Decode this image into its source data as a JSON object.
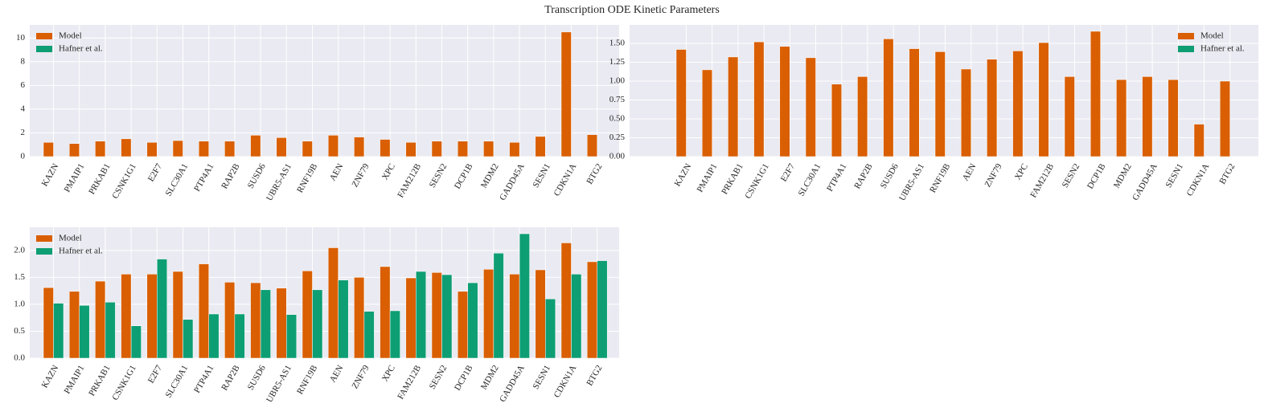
{
  "title": "Transcription ODE Kinetic Parameters",
  "chart_data": [
    {
      "type": "bar",
      "categories": [
        "KAZN",
        "PMAIP1",
        "PRKAB1",
        "CSNK1G1",
        "E2F7",
        "SLC30A1",
        "PTP4A1",
        "RAP2B",
        "SUSD6",
        "UBR5-AS1",
        "RNF19B",
        "AEN",
        "ZNF79",
        "XPC",
        "FAM212B",
        "SESN2",
        "DCP1B",
        "MDM2",
        "GADD45A",
        "SESN1",
        "CDKN1A",
        "BTG2"
      ],
      "series": [
        {
          "name": "Model",
          "color": "#d95f02",
          "values": [
            1.2,
            1.1,
            1.3,
            1.5,
            1.2,
            1.35,
            1.3,
            1.3,
            1.8,
            1.6,
            1.3,
            1.8,
            1.65,
            1.45,
            1.2,
            1.3,
            1.3,
            1.3,
            1.2,
            1.7,
            10.5,
            1.85
          ]
        },
        {
          "name": "Hafner et al.",
          "color": "#0e9e74",
          "values": [
            null,
            null,
            null,
            null,
            null,
            null,
            null,
            null,
            null,
            null,
            null,
            null,
            null,
            null,
            null,
            null,
            null,
            null,
            null,
            null,
            null,
            null
          ]
        }
      ],
      "ylim": [
        0,
        11.1
      ],
      "yticks": [
        0,
        2,
        4,
        6,
        8,
        10
      ],
      "grid": true,
      "legend": "upper left"
    },
    {
      "type": "bar",
      "categories": [
        "KAZN",
        "PMAIP1",
        "PRKAB1",
        "CSNK1G1",
        "E2F7",
        "SLC30A1",
        "PTP4A1",
        "RAP2B",
        "SUSD6",
        "UBR5-AS1",
        "RNF19B",
        "AEN",
        "ZNF79",
        "XPC",
        "FAM212B",
        "SESN2",
        "DCP1B",
        "MDM2",
        "GADD45A",
        "SESN1",
        "CDKN1A",
        "BTG2"
      ],
      "series": [
        {
          "name": "Model",
          "color": "#d95f02",
          "values": [
            1.42,
            1.15,
            1.32,
            1.52,
            1.46,
            1.31,
            0.96,
            1.06,
            1.56,
            1.43,
            1.39,
            1.16,
            1.29,
            1.4,
            1.51,
            1.06,
            1.66,
            1.02,
            1.06,
            1.02,
            0.43,
            1.0
          ]
        },
        {
          "name": "Hafner et al.",
          "color": "#0e9e74",
          "values": [
            null,
            null,
            null,
            null,
            null,
            null,
            null,
            null,
            null,
            null,
            null,
            null,
            null,
            null,
            null,
            null,
            null,
            null,
            null,
            null,
            null,
            null
          ]
        }
      ],
      "ylim": [
        0,
        1.745
      ],
      "yticks": [
        {
          "value": 0,
          "label": "0.00"
        },
        {
          "value": 0.25,
          "label": "0.25"
        },
        {
          "value": 0.5,
          "label": "0.50"
        },
        {
          "value": 0.75,
          "label": "0.75"
        },
        {
          "value": 1,
          "label": "1.00"
        },
        {
          "value": 1.25,
          "label": "1.25"
        },
        {
          "value": 1.5,
          "label": "1.50"
        }
      ],
      "grid": true,
      "legend": "upper right"
    },
    {
      "type": "bar",
      "categories": [
        "KAZN",
        "PMAIP1",
        "PRKAB1",
        "CSNK1G1",
        "E2F7",
        "SLC30A1",
        "PTP4A1",
        "RAP2B",
        "SUSD6",
        "UBR5-AS1",
        "RNF19B",
        "AEN",
        "ZNF79",
        "XPC",
        "FAM212B",
        "SESN2",
        "DCP1B",
        "MDM2",
        "GADD45A",
        "SESN1",
        "CDKN1A",
        "BTG2"
      ],
      "series": [
        {
          "name": "Model",
          "color": "#d95f02",
          "values": [
            1.31,
            1.24,
            1.43,
            1.56,
            1.56,
            1.61,
            1.75,
            1.41,
            1.4,
            1.3,
            1.62,
            2.05,
            1.5,
            1.7,
            1.49,
            1.59,
            1.24,
            1.65,
            1.56,
            1.64,
            2.14,
            1.79
          ]
        },
        {
          "name": "Hafner et al.",
          "color": "#0e9e74",
          "values": [
            1.02,
            0.98,
            1.04,
            0.6,
            1.84,
            0.72,
            0.82,
            0.82,
            1.27,
            0.81,
            1.27,
            1.45,
            0.87,
            0.88,
            1.61,
            1.55,
            1.4,
            1.95,
            2.31,
            1.1,
            1.56,
            1.81
          ]
        }
      ],
      "ylim": [
        0,
        2.43
      ],
      "yticks": [
        {
          "value": 0,
          "label": "0.0"
        },
        {
          "value": 0.5,
          "label": "0.5"
        },
        {
          "value": 1,
          "label": "1.0"
        },
        {
          "value": 1.5,
          "label": "1.5"
        },
        {
          "value": 2,
          "label": "2.0"
        }
      ],
      "grid": true,
      "legend": "upper left"
    }
  ]
}
